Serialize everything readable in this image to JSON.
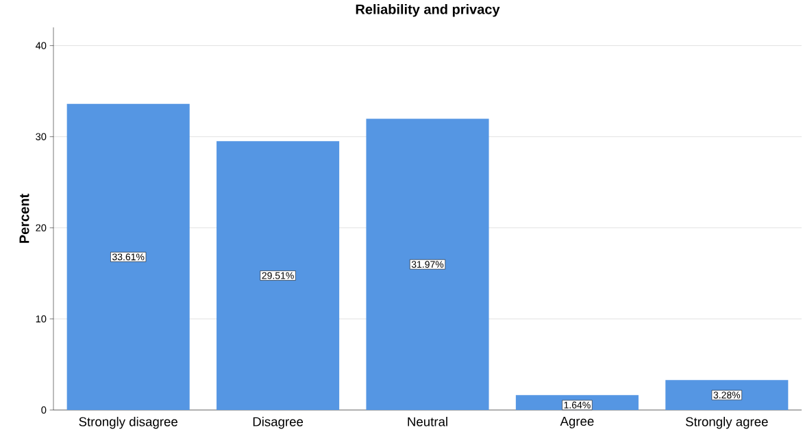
{
  "chart_data": {
    "type": "bar",
    "title": "Reliability and privacy",
    "ylabel": "Percent",
    "categories": [
      "Strongly disagree",
      "Disagree",
      "Neutral",
      "Agree",
      "Strongly agree"
    ],
    "values": [
      33.61,
      29.51,
      31.97,
      1.64,
      3.28
    ],
    "value_labels": [
      "33.61%",
      "29.51%",
      "31.97%",
      "1.64%",
      "3.28%"
    ],
    "color": "#5596e3",
    "ylim": [
      0,
      42
    ],
    "yticks": [
      0,
      10,
      20,
      30,
      40
    ],
    "grid": "y"
  }
}
